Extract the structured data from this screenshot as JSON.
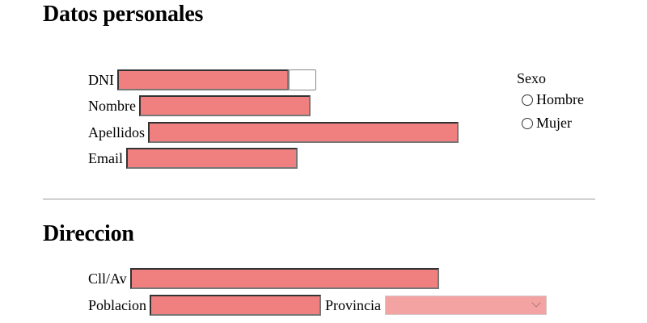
{
  "personal": {
    "heading": "Datos personales",
    "dni_label": "DNI",
    "dni_value": "",
    "nombre_label": "Nombre",
    "nombre_value": "",
    "apellidos_label": "Apellidos",
    "apellidos_value": "",
    "email_label": "Email",
    "email_value": "",
    "sexo": {
      "label": "Sexo",
      "options": [
        "Hombre",
        "Mujer"
      ],
      "selected": ""
    }
  },
  "address": {
    "heading": "Direccion",
    "calle_label": "Cll/Av",
    "calle_value": "",
    "poblacion_label": "Poblacion",
    "poblacion_value": "",
    "provincia_label": "Provincia",
    "provincia_selected": ""
  },
  "colors": {
    "field_background": "#f08080",
    "select_background": "#f4a3a3",
    "divider": "#9a9a9a"
  },
  "icons": {
    "provincia_dropdown": "chevron-down-icon"
  }
}
